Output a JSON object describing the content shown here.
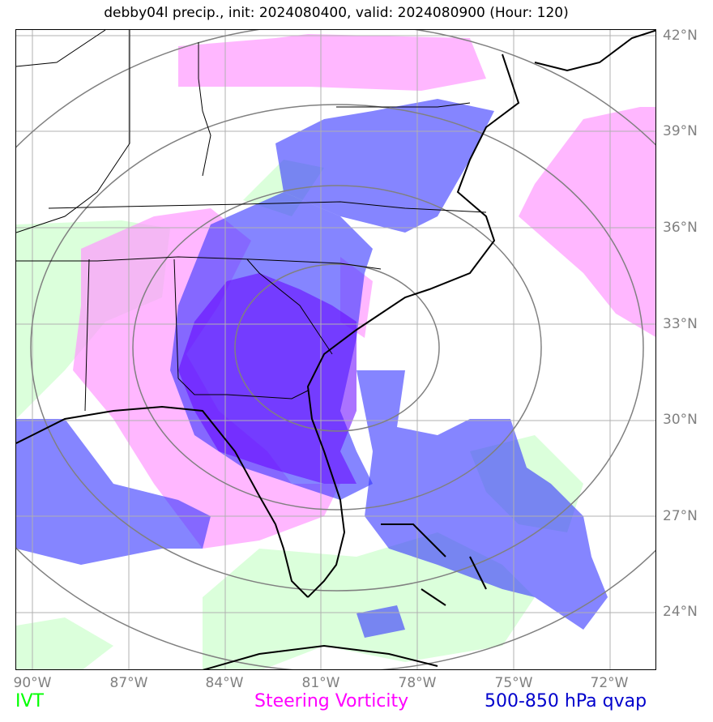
{
  "title": "debby04l precip., init: 2024080400, valid: 2024080900 (Hour: 120)",
  "lat_labels": [
    "42°N",
    "39°N",
    "36°N",
    "33°N",
    "30°N",
    "27°N",
    "24°N"
  ],
  "lon_labels": [
    "90°W",
    "87°W",
    "84°W",
    "81°W",
    "78°W",
    "75°W",
    "72°W"
  ],
  "legend": {
    "ivt": {
      "label": "IVT",
      "color": "#00ff00"
    },
    "vort": {
      "label": "Steering Vorticity",
      "color": "#ff00ff"
    },
    "qvap": {
      "label": "500-850 hPa qvap",
      "color": "#0000cc"
    }
  },
  "colors": {
    "ivt_fill": "#ccffcc",
    "vort_fill": "#ff99ff",
    "qvap_fill": "#3333ff",
    "qvap_dark": "#6600ff",
    "range_rings": "#808080",
    "gridlines": "#b0b0b0",
    "coastline": "#000000"
  }
}
